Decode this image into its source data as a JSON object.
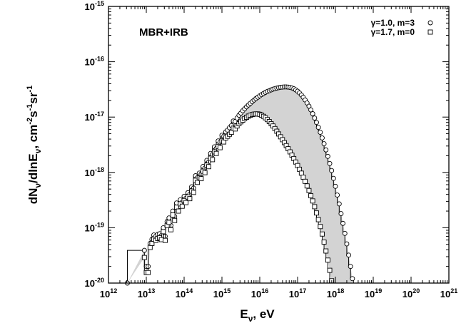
{
  "chart_data": {
    "type": "line",
    "annotations": [
      "MBR+IRB"
    ],
    "xlabel": "Eν, eV",
    "ylabel": "dNν/dlnEν, cm-2s-1sr-1",
    "xscale": "log",
    "yscale": "log",
    "xlim": [
      1000000000000.0,
      1e+21
    ],
    "ylim": [
      1e-20,
      1e-15
    ],
    "x_ticks": [
      "10^12",
      "10^13",
      "10^14",
      "10^15",
      "10^16",
      "10^17",
      "10^18",
      "10^19",
      "10^20",
      "10^21"
    ],
    "y_ticks": [
      "10^-15",
      "10^-16",
      "10^-17",
      "10^-18",
      "10^-19",
      "10^-20"
    ],
    "grid": false,
    "legend_position": "top-right",
    "fill_between_series": true,
    "fill_color": "#d3d3d3",
    "series": [
      {
        "name": "γ=1.0, m=3",
        "marker": "circle",
        "points": [
          [
            3160000000000.0,
            1e-20
          ],
          [
            8900000000000.0,
            3.9e-20
          ],
          [
            10000000000000.0,
            2e-20
          ],
          [
            11200000000000.0,
            2e-20
          ],
          [
            12600000000000.0,
            5.2e-20
          ],
          [
            14100000000000.0,
            6.2e-20
          ],
          [
            15800000000000.0,
            7.4e-20
          ],
          [
            17800000000000.0,
            7e-20
          ],
          [
            20000000000000.0,
            7.6e-20
          ],
          [
            22400000000000.0,
            7.8e-20
          ],
          [
            25100000000000.0,
            7.2e-20
          ],
          [
            28200000000000.0,
            1e-19
          ],
          [
            31600000000000.0,
            7e-20
          ],
          [
            35500000000000.0,
            1.3e-19
          ],
          [
            39800000000000.0,
            1.5e-19
          ],
          [
            44700000000000.0,
            1.1e-19
          ],
          [
            50100000000000.0,
            2e-19
          ],
          [
            56200000000000.0,
            1.6e-19
          ],
          [
            63100000000000.0,
            2.8e-19
          ],
          [
            70800000000000.0,
            2.4e-19
          ],
          [
            79400000000000.0,
            3.2e-19
          ],
          [
            89100000000000.0,
            2.9e-19
          ],
          [
            100000000000000.0,
            3.7e-19
          ],
          [
            112000000000000.0,
            3.4e-19
          ],
          [
            126000000000000.0,
            4.3e-19
          ],
          [
            141000000000000.0,
            4e-19
          ],
          [
            158000000000000.0,
            5.5e-19
          ],
          [
            178000000000000.0,
            5.2e-19
          ],
          [
            200000000000000.0,
            8.7e-19
          ],
          [
            224000000000000.0,
            8e-19
          ],
          [
            251000000000000.0,
            9.7e-19
          ],
          [
            282000000000000.0,
            9.3e-19
          ],
          [
            316000000000000.0,
            1.28e-18
          ],
          [
            355000000000000.0,
            1.2e-18
          ],
          [
            398000000000000.0,
            1.65e-18
          ],
          [
            447000000000000.0,
            1.55e-18
          ],
          [
            501000000000000.0,
            2.2e-18
          ],
          [
            562000000000000.0,
            2.1e-18
          ],
          [
            631000000000000.0,
            2.9e-18
          ],
          [
            708000000000000.0,
            2.7e-18
          ],
          [
            794000000000000.0,
            3.7e-18
          ],
          [
            891000000000000.0,
            3.5e-18
          ],
          [
            1000000000000000.0,
            4.7e-18
          ],
          [
            1120000000000000.0,
            4.5e-18
          ],
          [
            1260000000000000.0,
            5.4e-18
          ],
          [
            1410000000000000.0,
            5.8e-18
          ],
          [
            1580000000000000.0,
            6.4e-18
          ],
          [
            1780000000000000.0,
            7e-18
          ],
          [
            2000000000000000.0,
            8.5e-18
          ],
          [
            2240000000000000.0,
            8.3e-18
          ],
          [
            2510000000000000.0,
            9.6e-18
          ],
          [
            2820000000000000.0,
            1.08e-17
          ],
          [
            3160000000000000.0,
            1.18e-17
          ],
          [
            3550000000000000.0,
            1.3e-17
          ],
          [
            3980000000000000.0,
            1.41e-17
          ],
          [
            4470000000000000.0,
            1.53e-17
          ],
          [
            5010000000000000.0,
            1.65e-17
          ],
          [
            5620000000000000.0,
            1.77e-17
          ],
          [
            6310000000000000.0,
            1.9e-17
          ],
          [
            7080000000000000.0,
            2.03e-17
          ],
          [
            7940000000000000.0,
            2.16e-17
          ],
          [
            8910000000000000.0,
            2.29e-17
          ],
          [
            1e+16,
            2.42e-17
          ],
          [
            1.12e+16,
            2.55e-17
          ],
          [
            1.26e+16,
            2.67e-17
          ],
          [
            1.41e+16,
            2.79e-17
          ],
          [
            1.58e+16,
            2.9e-17
          ],
          [
            1.78e+16,
            3e-17
          ],
          [
            2e+16,
            3.1e-17
          ],
          [
            2.24e+16,
            3.19e-17
          ],
          [
            2.51e+16,
            3.27e-17
          ],
          [
            2.82e+16,
            3.34e-17
          ],
          [
            3.16e+16,
            3.4e-17
          ],
          [
            3.55e+16,
            3.45e-17
          ],
          [
            3.98e+16,
            3.48e-17
          ],
          [
            4.47e+16,
            3.5e-17
          ],
          [
            5.01e+16,
            3.5e-17
          ],
          [
            5.62e+16,
            3.48e-17
          ],
          [
            6.31e+16,
            3.44e-17
          ],
          [
            7.08e+16,
            3.36e-17
          ],
          [
            7.94e+16,
            3.25e-17
          ],
          [
            8.91e+16,
            3.1e-17
          ],
          [
            1e+17,
            2.93e-17
          ],
          [
            1.12e+17,
            2.73e-17
          ],
          [
            1.26e+17,
            2.51e-17
          ],
          [
            1.41e+17,
            2.28e-17
          ],
          [
            1.58e+17,
            2.04e-17
          ],
          [
            1.78e+17,
            1.8e-17
          ],
          [
            2e+17,
            1.57e-17
          ],
          [
            2.24e+17,
            1.35e-17
          ],
          [
            2.51e+17,
            1.15e-17
          ],
          [
            2.82e+17,
            9.6e-18
          ],
          [
            3.16e+17,
            8e-18
          ],
          [
            3.55e+17,
            6.5e-18
          ],
          [
            3.98e+17,
            5.3e-18
          ],
          [
            4.47e+17,
            4.2e-18
          ],
          [
            5.01e+17,
            3.3e-18
          ],
          [
            5.62e+17,
            2.55e-18
          ],
          [
            6.31e+17,
            1.95e-18
          ],
          [
            7.08e+17,
            1.45e-18
          ],
          [
            7.94e+17,
            1.08e-18
          ],
          [
            8.91e+17,
            7.8e-19
          ],
          [
            1e+18,
            5.6e-19
          ],
          [
            1.12e+18,
            3.9e-19
          ],
          [
            1.26e+18,
            2.7e-19
          ],
          [
            1.41e+18,
            1.8e-19
          ],
          [
            1.58e+18,
            1.2e-19
          ],
          [
            1.78e+18,
            7.9e-20
          ],
          [
            2e+18,
            5.1e-20
          ],
          [
            2.24e+18,
            3.2e-20
          ],
          [
            2.51e+18,
            2e-20
          ],
          [
            2.82e+18,
            1.2e-20
          ]
        ]
      },
      {
        "name": "γ=1.7, m=0",
        "marker": "square",
        "points": [
          [
            8900000000000.0,
            2.9e-20
          ],
          [
            10000000000000.0,
            1.55e-20
          ],
          [
            11200000000000.0,
            1.55e-20
          ],
          [
            12600000000000.0,
            4.4e-20
          ],
          [
            14100000000000.0,
            5.2e-20
          ],
          [
            15800000000000.0,
            6.2e-20
          ],
          [
            17800000000000.0,
            5.9e-20
          ],
          [
            20000000000000.0,
            6.4e-20
          ],
          [
            22400000000000.0,
            6.6e-20
          ],
          [
            25100000000000.0,
            6.1e-20
          ],
          [
            28200000000000.0,
            8.5e-20
          ],
          [
            31600000000000.0,
            5.9e-20
          ],
          [
            35500000000000.0,
            1.1e-19
          ],
          [
            39800000000000.0,
            1.25e-19
          ],
          [
            44700000000000.0,
            9.2e-20
          ],
          [
            50100000000000.0,
            1.7e-19
          ],
          [
            56200000000000.0,
            1.35e-19
          ],
          [
            63100000000000.0,
            2.35e-19
          ],
          [
            70800000000000.0,
            2e-19
          ],
          [
            79400000000000.0,
            2.7e-19
          ],
          [
            89100000000000.0,
            2.45e-19
          ],
          [
            100000000000000.0,
            3.1e-19
          ],
          [
            112000000000000.0,
            2.85e-19
          ],
          [
            126000000000000.0,
            3.6e-19
          ],
          [
            141000000000000.0,
            3.35e-19
          ],
          [
            158000000000000.0,
            4.6e-19
          ],
          [
            178000000000000.0,
            4.35e-19
          ],
          [
            200000000000000.0,
            7.2e-19
          ],
          [
            224000000000000.0,
            6.6e-19
          ],
          [
            251000000000000.0,
            8e-19
          ],
          [
            282000000000000.0,
            7.7e-19
          ],
          [
            316000000000000.0,
            1.05e-18
          ],
          [
            355000000000000.0,
            9.9e-19
          ],
          [
            398000000000000.0,
            1.35e-18
          ],
          [
            447000000000000.0,
            1.27e-18
          ],
          [
            501000000000000.0,
            1.8e-18
          ],
          [
            562000000000000.0,
            1.7e-18
          ],
          [
            631000000000000.0,
            2.35e-18
          ],
          [
            708000000000000.0,
            2.2e-18
          ],
          [
            794000000000000.0,
            2.95e-18
          ],
          [
            891000000000000.0,
            2.8e-18
          ],
          [
            1000000000000000.0,
            3.7e-18
          ],
          [
            1120000000000000.0,
            3.55e-18
          ],
          [
            1260000000000000.0,
            4.2e-18
          ],
          [
            1410000000000000.0,
            4.5e-18
          ],
          [
            1580000000000000.0,
            4.9e-18
          ],
          [
            1780000000000000.0,
            5.3e-18
          ],
          [
            2000000000000000.0,
            6.3e-18
          ],
          [
            2240000000000000.0,
            6.1e-18
          ],
          [
            2510000000000000.0,
            6.9e-18
          ],
          [
            2820000000000000.0,
            7.6e-18
          ],
          [
            3160000000000000.0,
            8.2e-18
          ],
          [
            3550000000000000.0,
            8.8e-18
          ],
          [
            3980000000000000.0,
            9.4e-18
          ],
          [
            4470000000000000.0,
            9.9e-18
          ],
          [
            5010000000000000.0,
            1.04e-17
          ],
          [
            5620000000000000.0,
            1.08e-17
          ],
          [
            6310000000000000.0,
            1.11e-17
          ],
          [
            7080000000000000.0,
            1.13e-17
          ],
          [
            7940000000000000.0,
            1.14e-17
          ],
          [
            8910000000000000.0,
            1.14e-17
          ],
          [
            1e+16,
            1.12e-17
          ],
          [
            1.12e+16,
            1.08e-17
          ],
          [
            1.26e+16,
            1.03e-17
          ],
          [
            1.41e+16,
            9.7e-18
          ],
          [
            1.58e+16,
            9e-18
          ],
          [
            1.78e+16,
            8.3e-18
          ],
          [
            2e+16,
            7.6e-18
          ],
          [
            2.24e+16,
            6.9e-18
          ],
          [
            2.51e+16,
            6.2e-18
          ],
          [
            2.82e+16,
            5.55e-18
          ],
          [
            3.16e+16,
            4.95e-18
          ],
          [
            3.55e+16,
            4.4e-18
          ],
          [
            3.98e+16,
            3.9e-18
          ],
          [
            4.47e+16,
            3.45e-18
          ],
          [
            5.01e+16,
            3.05e-18
          ],
          [
            5.62e+16,
            2.68e-18
          ],
          [
            6.31e+16,
            2.35e-18
          ],
          [
            7.08e+16,
            2.05e-18
          ],
          [
            7.94e+16,
            1.78e-18
          ],
          [
            8.91e+16,
            1.54e-18
          ],
          [
            1e+17,
            1.33e-18
          ],
          [
            1.12e+17,
            1.14e-18
          ],
          [
            1.26e+17,
            9.7e-19
          ],
          [
            1.41e+17,
            8.2e-19
          ],
          [
            1.58e+17,
            6.9e-19
          ],
          [
            1.78e+17,
            5.7e-19
          ],
          [
            2e+17,
            4.7e-19
          ],
          [
            2.24e+17,
            3.8e-19
          ],
          [
            2.51e+17,
            3.05e-19
          ],
          [
            2.82e+17,
            2.4e-19
          ],
          [
            3.16e+17,
            1.85e-19
          ],
          [
            3.55e+17,
            1.4e-19
          ],
          [
            3.98e+17,
            1.05e-19
          ],
          [
            4.47e+17,
            7.7e-20
          ],
          [
            5.01e+17,
            5.5e-20
          ],
          [
            5.62e+17,
            3.8e-20
          ],
          [
            6.31e+17,
            2.6e-20
          ],
          [
            7.08e+17,
            1.7e-20
          ],
          [
            7.94e+17,
            1.1e-20
          ]
        ]
      }
    ]
  }
}
